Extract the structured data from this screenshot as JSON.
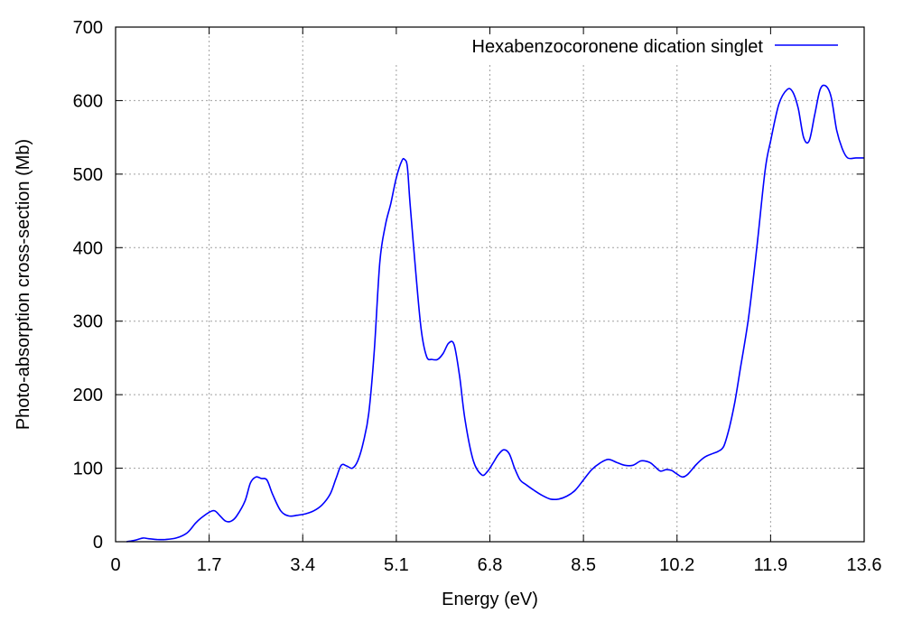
{
  "chart_data": {
    "type": "line",
    "title": "",
    "xlabel": "Energy (eV)",
    "ylabel": "Photo-absorption cross-section (Mb)",
    "xlim": [
      0,
      13.6
    ],
    "ylim": [
      0,
      700
    ],
    "xticks": [
      "0",
      "1.7",
      "3.4",
      "5.1",
      "6.8",
      "8.5",
      "10.2",
      "11.9",
      "13.6"
    ],
    "yticks": [
      "0",
      "100",
      "200",
      "300",
      "400",
      "500",
      "600",
      "700"
    ],
    "grid": true,
    "legend_position": "top-right",
    "series": [
      {
        "name": "Hexabenzocoronene dication singlet",
        "color": "#0000ff",
        "x": [
          0.2,
          0.35,
          0.5,
          0.6,
          0.75,
          0.9,
          1.1,
          1.3,
          1.45,
          1.55,
          1.7,
          1.8,
          1.9,
          2.0,
          2.1,
          2.2,
          2.35,
          2.45,
          2.55,
          2.65,
          2.75,
          2.85,
          3.0,
          3.15,
          3.3,
          3.45,
          3.6,
          3.75,
          3.9,
          4.0,
          4.1,
          4.2,
          4.3,
          4.4,
          4.5,
          4.6,
          4.7,
          4.8,
          4.9,
          5.0,
          5.1,
          5.2,
          5.25,
          5.3,
          5.35,
          5.45,
          5.55,
          5.65,
          5.75,
          5.85,
          5.95,
          6.05,
          6.15,
          6.25,
          6.35,
          6.5,
          6.65,
          6.75,
          6.85,
          6.95,
          7.05,
          7.15,
          7.25,
          7.35,
          7.45,
          7.6,
          7.75,
          7.9,
          8.05,
          8.2,
          8.35,
          8.5,
          8.65,
          8.8,
          8.95,
          9.1,
          9.25,
          9.4,
          9.55,
          9.7,
          9.8,
          9.9,
          10.0,
          10.1,
          10.2,
          10.3,
          10.4,
          10.55,
          10.7,
          10.85,
          10.95,
          11.05,
          11.15,
          11.25,
          11.35,
          11.5,
          11.65,
          11.8,
          11.9,
          12.05,
          12.2,
          12.3,
          12.4,
          12.5,
          12.6,
          12.7,
          12.8,
          12.9,
          13.0,
          13.1,
          13.2,
          13.3,
          13.45,
          13.6
        ],
        "y": [
          0,
          2,
          5,
          4,
          3,
          3,
          5,
          12,
          25,
          32,
          40,
          42,
          35,
          28,
          28,
          35,
          55,
          80,
          88,
          86,
          84,
          65,
          42,
          35,
          36,
          38,
          42,
          50,
          65,
          85,
          104,
          103,
          100,
          110,
          135,
          175,
          260,
          380,
          430,
          460,
          495,
          518,
          520,
          510,
          460,
          370,
          290,
          252,
          248,
          248,
          256,
          270,
          268,
          225,
          165,
          110,
          91,
          95,
          106,
          118,
          125,
          120,
          100,
          84,
          78,
          70,
          63,
          58,
          58,
          62,
          70,
          84,
          98,
          107,
          112,
          108,
          104,
          104,
          110,
          108,
          102,
          96,
          98,
          97,
          92,
          88,
          92,
          105,
          115,
          120,
          123,
          130,
          155,
          190,
          235,
          305,
          400,
          505,
          545,
          595,
          615,
          612,
          590,
          550,
          545,
          580,
          615,
          620,
          605,
          560,
          535,
          522,
          522,
          522
        ]
      }
    ]
  }
}
